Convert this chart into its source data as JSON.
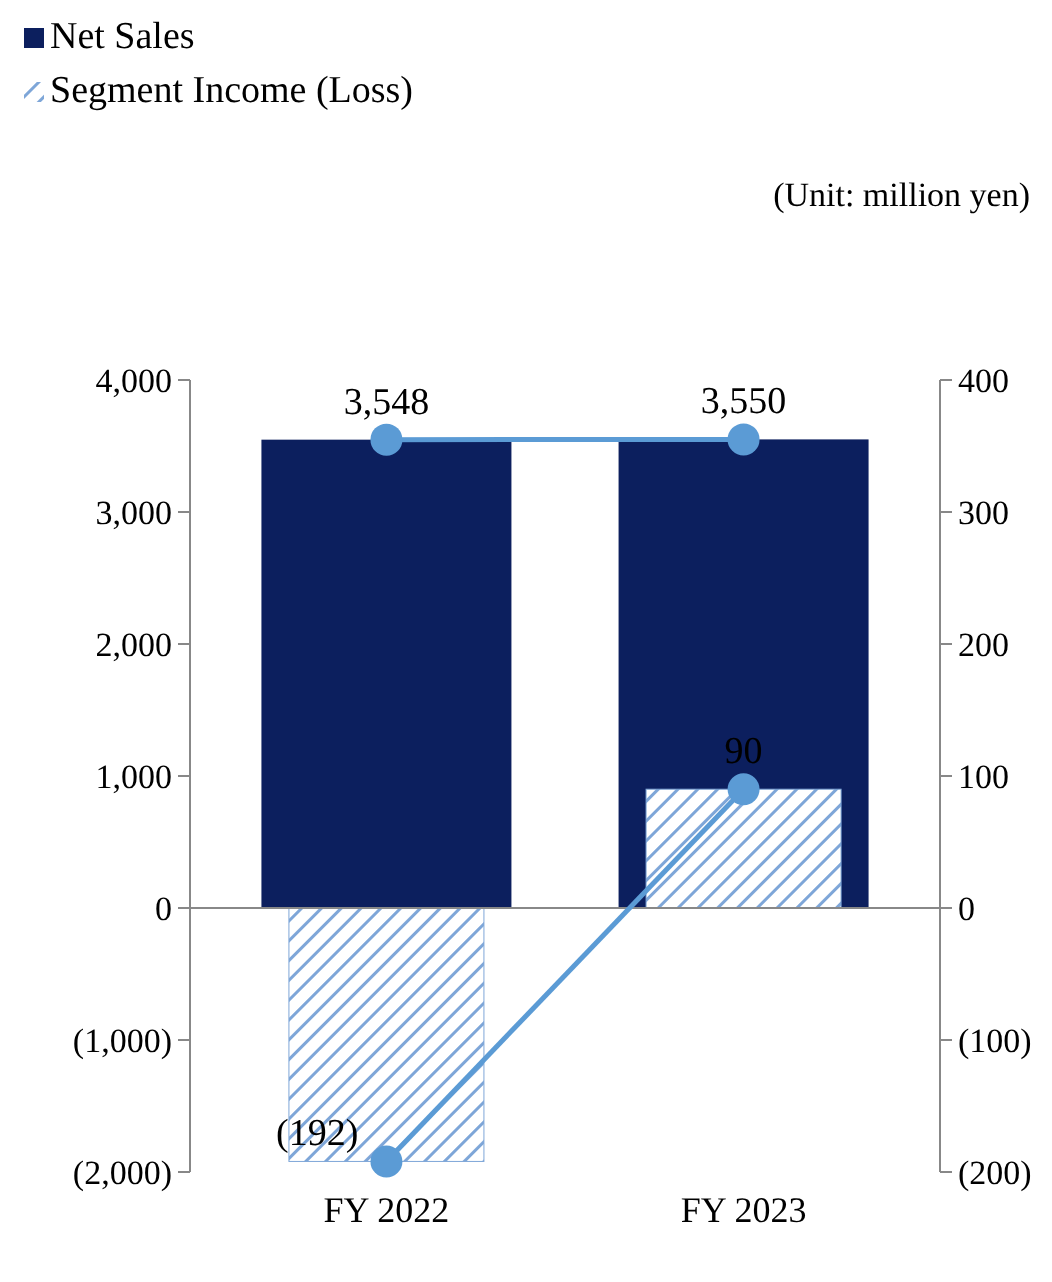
{
  "chart_data": {
    "type": "bar",
    "categories": [
      "FY 2022",
      "FY 2023"
    ],
    "series": [
      {
        "name": "Net Sales",
        "color": "#0c1f5e",
        "values": [
          3548,
          3550
        ]
      },
      {
        "name": "Segment Income (Loss)",
        "axis": "y2",
        "color": "#7ea6d8",
        "values": [
          -192,
          90
        ]
      },
      {
        "type": "line",
        "color": "#5b9bd5",
        "values": [
          3548,
          3550
        ],
        "value_labels": [
          "3,548",
          "3,550"
        ]
      },
      {
        "type": "line",
        "axis": "y2",
        "color": "#5b9bd5",
        "values": [
          -192,
          90
        ],
        "value_labels": [
          "(192)",
          "90"
        ]
      }
    ],
    "ylim": [
      -2000,
      4000
    ],
    "yticks": [
      {
        "value": -2000,
        "label": "(2,000)"
      },
      {
        "value": -1000,
        "label": "(1,000)"
      },
      0,
      {
        "value": 1000,
        "label": "1,000"
      },
      {
        "value": 2000,
        "label": "2,000"
      },
      {
        "value": 3000,
        "label": "3,000"
      },
      {
        "value": 4000,
        "label": "4,000"
      }
    ],
    "y2lim": [
      -200,
      400
    ],
    "y2ticks": [
      {
        "value": -200,
        "label": "(200)"
      },
      {
        "value": -100,
        "label": "(100)"
      },
      0,
      100,
      200,
      300,
      400
    ],
    "marker": "circle",
    "legend": "top left",
    "annotations": [
      "(Unit: million yen)"
    ]
  }
}
